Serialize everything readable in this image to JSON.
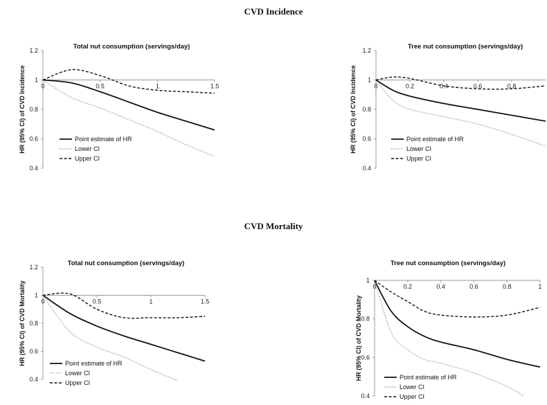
{
  "sections": [
    {
      "title": "CVD Incidence"
    },
    {
      "title": "CVD Mortality"
    }
  ],
  "legend_labels": [
    "Point estimate of HR",
    "Lower CI",
    "Upper CI"
  ],
  "chart_data": [
    {
      "type": "line",
      "section": "CVD Incidence",
      "title": "Total nut consumption (servings/day)",
      "xlabel": "",
      "ylabel": "HR (95% CI) of CVD Incidence",
      "xlim": [
        0,
        1.5
      ],
      "ylim": [
        0.4,
        1.2
      ],
      "xticks": [
        0,
        0.5,
        1,
        1.5
      ],
      "xtick_labels": [
        "0",
        "0.5",
        "1",
        "1.5"
      ],
      "yticks": [
        0.4,
        0.6,
        0.8,
        1,
        1.2
      ],
      "ytick_labels": [
        "0.4",
        "0.6",
        "0.8",
        "1",
        "1.2"
      ],
      "legend": "bottom-left",
      "grid": false,
      "series": [
        {
          "name": "Point estimate of HR",
          "style": "solid",
          "x": [
            0,
            0.25,
            0.5,
            0.75,
            1.0,
            1.25,
            1.5
          ],
          "values": [
            1.0,
            0.98,
            0.92,
            0.85,
            0.78,
            0.72,
            0.66
          ]
        },
        {
          "name": "Lower CI",
          "style": "dotted",
          "x": [
            0,
            0.25,
            0.5,
            0.75,
            1.0,
            1.25,
            1.5
          ],
          "values": [
            1.0,
            0.88,
            0.81,
            0.73,
            0.65,
            0.56,
            0.48
          ]
        },
        {
          "name": "Upper CI",
          "style": "dashed",
          "x": [
            0,
            0.25,
            0.5,
            0.75,
            1.0,
            1.25,
            1.5
          ],
          "values": [
            1.0,
            1.07,
            1.03,
            0.96,
            0.93,
            0.92,
            0.91
          ]
        }
      ]
    },
    {
      "type": "line",
      "section": "CVD Incidence",
      "title": "Tree nut consumption (servings/day)",
      "xlabel": "",
      "ylabel": "HR (95% CI) of CVD Incidence",
      "xlim": [
        0,
        1
      ],
      "ylim": [
        0.4,
        1.2
      ],
      "xticks": [
        0,
        0.2,
        0.4,
        0.6,
        0.8
      ],
      "xtick_labels": [
        "0",
        "0.2",
        "0.4",
        "0.6",
        "0.8"
      ],
      "yticks": [
        0.4,
        0.6,
        0.8,
        1,
        1.2
      ],
      "ytick_labels": [
        "0.4",
        "0.6",
        "0.8",
        "1",
        "1.2"
      ],
      "legend": "bottom-left",
      "grid": false,
      "series": [
        {
          "name": "Point estimate of HR",
          "style": "solid",
          "x": [
            0,
            0.1,
            0.2,
            0.4,
            0.6,
            0.8,
            1.0
          ],
          "values": [
            1.0,
            0.93,
            0.89,
            0.84,
            0.8,
            0.76,
            0.72
          ]
        },
        {
          "name": "Lower CI",
          "style": "dotted",
          "x": [
            0,
            0.1,
            0.2,
            0.4,
            0.6,
            0.8,
            1.0
          ],
          "values": [
            1.0,
            0.86,
            0.8,
            0.75,
            0.7,
            0.63,
            0.55
          ]
        },
        {
          "name": "Upper CI",
          "style": "dashed",
          "x": [
            0,
            0.1,
            0.2,
            0.4,
            0.6,
            0.8,
            1.0
          ],
          "values": [
            1.0,
            1.02,
            1.01,
            0.96,
            0.94,
            0.94,
            0.96
          ]
        }
      ]
    },
    {
      "type": "line",
      "section": "CVD Mortality",
      "title": "Total nut consumption (servings/day)",
      "xlabel": "",
      "ylabel": "HR (95% CI) of CVD Mortality",
      "xlim": [
        0,
        1.5
      ],
      "ylim": [
        0.4,
        1.2
      ],
      "xticks": [
        0,
        0.5,
        1,
        1.5
      ],
      "xtick_labels": [
        "0",
        "0.5",
        "1",
        "1.5"
      ],
      "yticks": [
        0.4,
        0.6,
        0.8,
        1,
        1.2
      ],
      "ytick_labels": [
        "0.4",
        "0.6",
        "0.8",
        "1",
        "1.2"
      ],
      "legend": "bottom-left",
      "grid": false,
      "series": [
        {
          "name": "Point estimate of HR",
          "style": "solid",
          "x": [
            0,
            0.25,
            0.5,
            0.75,
            1.0,
            1.25,
            1.5
          ],
          "values": [
            1.0,
            0.87,
            0.78,
            0.71,
            0.65,
            0.59,
            0.53
          ]
        },
        {
          "name": "Lower CI",
          "style": "dotted",
          "x": [
            0,
            0.25,
            0.5,
            0.75,
            1.0,
            1.25
          ],
          "values": [
            1.0,
            0.74,
            0.63,
            0.56,
            0.47,
            0.39
          ]
        },
        {
          "name": "Upper CI",
          "style": "dashed",
          "x": [
            0,
            0.25,
            0.5,
            0.75,
            1.0,
            1.25,
            1.5
          ],
          "values": [
            1.0,
            1.01,
            0.9,
            0.84,
            0.84,
            0.84,
            0.85
          ]
        }
      ]
    },
    {
      "type": "line",
      "section": "CVD Mortality",
      "title": "Tree nut consumption (servings/day)",
      "xlabel": "",
      "ylabel": "HR (95% CI) of CVD Mortality",
      "xlim": [
        0,
        1
      ],
      "ylim": [
        0.4,
        1.0
      ],
      "xticks": [
        0,
        0.2,
        0.4,
        0.6,
        0.8,
        1
      ],
      "xtick_labels": [
        "0",
        "0.2",
        "0.4",
        "0.6",
        "0.8",
        "1"
      ],
      "yticks": [
        0.4,
        0.6,
        0.8,
        1
      ],
      "ytick_labels": [
        "0.4",
        "0.6",
        "0.8",
        "1"
      ],
      "legend": "bottom-left",
      "grid": false,
      "series": [
        {
          "name": "Point estimate of HR",
          "style": "solid",
          "x": [
            0,
            0.1,
            0.2,
            0.3,
            0.4,
            0.6,
            0.8,
            1.0
          ],
          "values": [
            1.0,
            0.84,
            0.76,
            0.71,
            0.68,
            0.64,
            0.59,
            0.55
          ]
        },
        {
          "name": "Lower CI",
          "style": "dotted",
          "x": [
            0,
            0.1,
            0.2,
            0.3,
            0.4,
            0.6,
            0.8,
            0.9
          ],
          "values": [
            1.0,
            0.73,
            0.64,
            0.59,
            0.57,
            0.52,
            0.45,
            0.4
          ]
        },
        {
          "name": "Upper CI",
          "style": "dashed",
          "x": [
            0,
            0.1,
            0.2,
            0.3,
            0.4,
            0.6,
            0.8,
            1.0
          ],
          "values": [
            1.0,
            0.94,
            0.89,
            0.84,
            0.82,
            0.81,
            0.82,
            0.86
          ]
        }
      ]
    }
  ]
}
